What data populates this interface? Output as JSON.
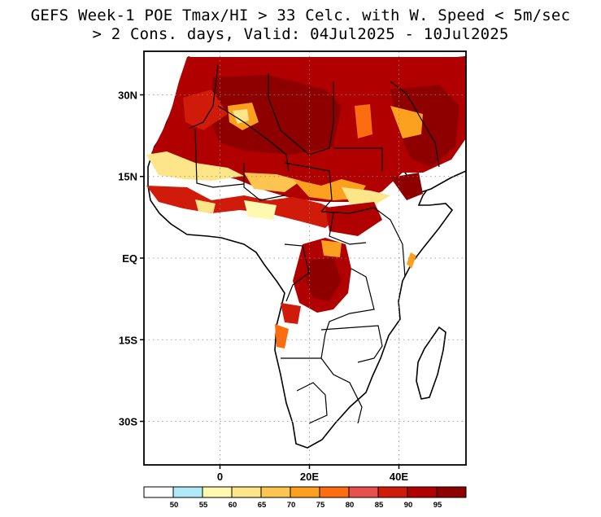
{
  "title": {
    "line1": "GEFS Week-1 POE Tmax/HI > 33 Celc. with W. Speed < 5m/sec",
    "line2": "> 2 Cons. days, Valid: 04Jul2025 - 10Jul2025"
  },
  "map": {
    "lon_range": [
      -17,
      55
    ],
    "lat_range": [
      -38,
      38
    ],
    "lat_ticks": [
      {
        "value": 30,
        "label": "30N"
      },
      {
        "value": 15,
        "label": "15N"
      },
      {
        "value": 0,
        "label": "EQ"
      },
      {
        "value": -15,
        "label": "15S"
      },
      {
        "value": -30,
        "label": "30S"
      }
    ],
    "lon_ticks": [
      {
        "value": 0,
        "label": "0"
      },
      {
        "value": 20,
        "label": "20E"
      },
      {
        "value": 40,
        "label": "40E"
      }
    ],
    "gridlines": "dotted"
  },
  "colorbar": {
    "labels": [
      "50",
      "55",
      "60",
      "65",
      "70",
      "75",
      "80",
      "85",
      "90",
      "95"
    ],
    "colors": [
      "#ffffff",
      "#aeeaf8",
      "#fff9b0",
      "#fde58a",
      "#fdc450",
      "#fca020",
      "#fc6d12",
      "#e85050",
      "#d01a0a",
      "#b00000",
      "#8e0000"
    ]
  }
}
